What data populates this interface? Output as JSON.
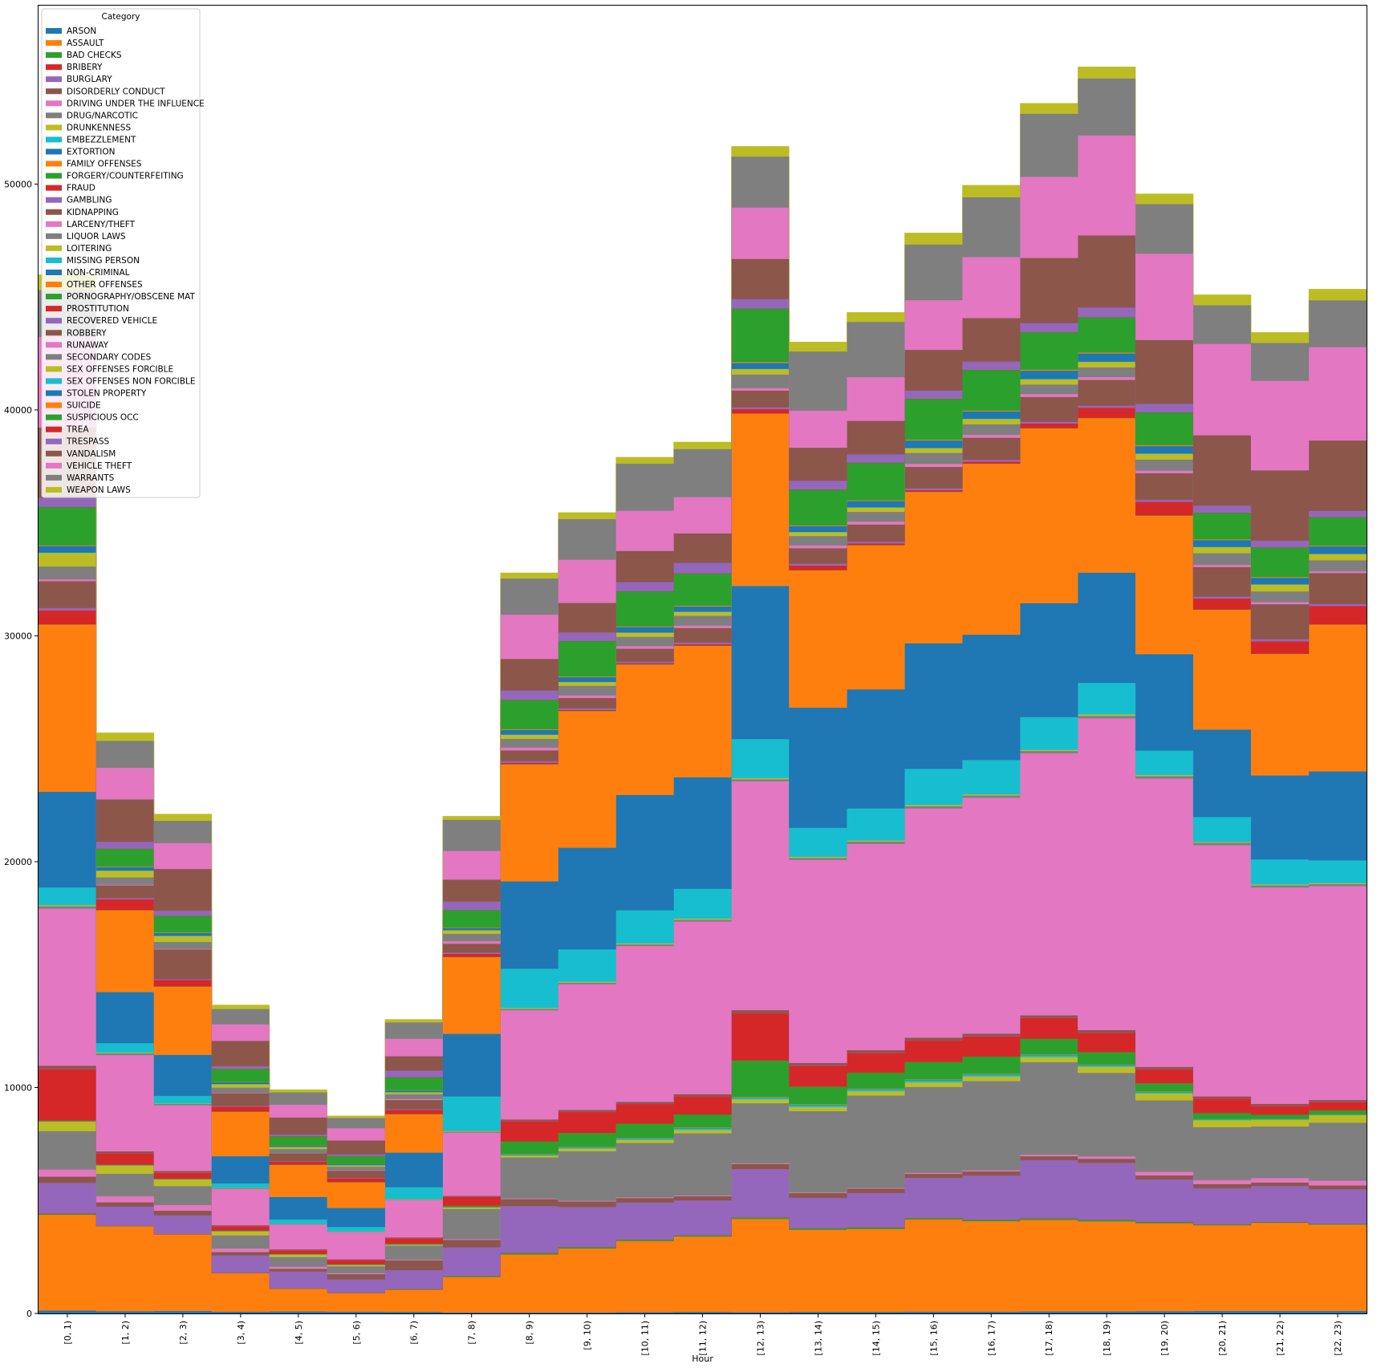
{
  "chart_data": {
    "type": "area",
    "stacked": true,
    "step": true,
    "xlabel": "Hour",
    "ylabel": "",
    "ylim": [
      0,
      57900
    ],
    "yticks": [
      0,
      10000,
      20000,
      30000,
      40000,
      50000
    ],
    "grid": false,
    "legend": {
      "title": "Category",
      "position": "top-left"
    },
    "categories": [
      "[0, 1)",
      "[1, 2)",
      "[2, 3)",
      "[3, 4)",
      "[4, 5)",
      "[5, 6)",
      "[6, 7)",
      "[7, 8)",
      "[8, 9)",
      "[9, 10)",
      "[10, 11)",
      "[11, 12)",
      "[12, 13)",
      "[13, 14)",
      "[14, 15)",
      "[15, 16)",
      "[16, 17)",
      "[17, 18)",
      "[18, 19)",
      "[19, 20)",
      "[20, 21)",
      "[21, 22)",
      "[22, 23)"
    ],
    "series": [
      {
        "name": "ARSON",
        "color": "#1f77b4",
        "values": [
          130,
          100,
          110,
          80,
          90,
          80,
          70,
          50,
          50,
          50,
          60,
          70,
          60,
          70,
          70,
          80,
          80,
          90,
          90,
          100,
          110,
          110,
          110
        ]
      },
      {
        "name": "ASSAULT",
        "color": "#ff7f0e",
        "values": [
          4240,
          3760,
          3390,
          1700,
          1000,
          820,
          980,
          1560,
          2560,
          2820,
          3140,
          3330,
          4120,
          3630,
          3670,
          4080,
          4000,
          4050,
          3980,
          3890,
          3790,
          3900,
          3820
        ]
      },
      {
        "name": "BAD CHECKS",
        "color": "#2ca02c",
        "values": [
          40,
          10,
          10,
          10,
          10,
          10,
          20,
          40,
          60,
          60,
          60,
          50,
          60,
          60,
          60,
          60,
          60,
          60,
          60,
          50,
          40,
          30,
          30
        ]
      },
      {
        "name": "BRIBERY",
        "color": "#d62728",
        "values": [
          20,
          10,
          10,
          10,
          10,
          10,
          10,
          10,
          10,
          10,
          10,
          10,
          10,
          10,
          10,
          10,
          10,
          10,
          10,
          10,
          10,
          10,
          10
        ]
      },
      {
        "name": "BURGLARY",
        "color": "#9467bd",
        "values": [
          1350,
          850,
          830,
          770,
          750,
          590,
          840,
          1270,
          2080,
          1770,
          1640,
          1550,
          2140,
          1350,
          1520,
          1770,
          1960,
          2580,
          2530,
          1880,
          1600,
          1590,
          1530
        ]
      },
      {
        "name": "DISORDERLY CONDUCT",
        "color": "#8c564b",
        "values": [
          280,
          190,
          200,
          150,
          120,
          230,
          430,
          330,
          300,
          250,
          200,
          180,
          230,
          210,
          200,
          180,
          180,
          170,
          180,
          180,
          180,
          160,
          170
        ]
      },
      {
        "name": "DRIVING UNDER THE INFLUENCE",
        "color": "#e377c2",
        "values": [
          310,
          270,
          250,
          150,
          90,
          40,
          30,
          30,
          30,
          30,
          30,
          30,
          30,
          30,
          30,
          40,
          50,
          70,
          100,
          160,
          170,
          190,
          210
        ]
      },
      {
        "name": "DRUG/NARCOTIC",
        "color": "#7f7f7f",
        "values": [
          1700,
          1000,
          840,
          590,
          430,
          310,
          620,
          1340,
          1820,
          2200,
          2410,
          2760,
          2660,
          3600,
          4090,
          3810,
          3950,
          4100,
          3700,
          3170,
          2350,
          2290,
          2570
        ]
      },
      {
        "name": "DRUNKENNESS",
        "color": "#bcbd22",
        "values": [
          420,
          360,
          290,
          170,
          100,
          50,
          40,
          60,
          80,
          110,
          130,
          140,
          170,
          180,
          190,
          200,
          200,
          220,
          270,
          300,
          300,
          290,
          330
        ]
      },
      {
        "name": "EMBEZZLEMENT",
        "color": "#17becf",
        "values": [
          10,
          10,
          10,
          10,
          10,
          10,
          10,
          10,
          30,
          50,
          60,
          70,
          70,
          80,
          80,
          90,
          80,
          80,
          70,
          50,
          40,
          30,
          20
        ]
      },
      {
        "name": "EXTORTION",
        "color": "#1f77b4",
        "values": [
          10,
          10,
          10,
          10,
          10,
          10,
          10,
          10,
          20,
          20,
          20,
          20,
          20,
          20,
          20,
          20,
          20,
          20,
          20,
          20,
          10,
          10,
          10
        ]
      },
      {
        "name": "FAMILY OFFENSES",
        "color": "#ff7f0e",
        "values": [
          10,
          10,
          10,
          10,
          10,
          10,
          10,
          10,
          20,
          20,
          20,
          20,
          20,
          20,
          20,
          20,
          20,
          20,
          20,
          20,
          10,
          10,
          10
        ]
      },
      {
        "name": "FORGERY/COUNTERFEITING",
        "color": "#2ca02c",
        "values": [
          20,
          10,
          10,
          10,
          10,
          10,
          20,
          50,
          560,
          600,
          620,
          580,
          1610,
          780,
          700,
          770,
          760,
          690,
          540,
          360,
          260,
          180,
          170
        ]
      },
      {
        "name": "FRAUD",
        "color": "#d62728",
        "values": [
          2280,
          500,
          260,
          190,
          160,
          180,
          240,
          390,
          890,
          930,
          870,
          800,
          2090,
          930,
          880,
          950,
          900,
          920,
          850,
          620,
          640,
          380,
          360
        ]
      },
      {
        "name": "GAMBLING",
        "color": "#9467bd",
        "values": [
          20,
          10,
          10,
          10,
          10,
          10,
          10,
          10,
          10,
          10,
          10,
          10,
          10,
          10,
          10,
          10,
          10,
          10,
          10,
          10,
          10,
          10,
          10
        ]
      },
      {
        "name": "KIDNAPPING",
        "color": "#8c564b",
        "values": [
          130,
          80,
          70,
          40,
          30,
          30,
          30,
          40,
          70,
          80,
          90,
          90,
          130,
          110,
          110,
          120,
          110,
          110,
          120,
          100,
          90,
          90,
          90
        ]
      },
      {
        "name": "LARCENY/THEFT",
        "color": "#e377c2",
        "values": [
          6950,
          4260,
          2910,
          1600,
          1100,
          1200,
          1650,
          2800,
          4830,
          5570,
          6900,
          7640,
          10130,
          8990,
          9130,
          10150,
          10440,
          11600,
          13800,
          12760,
          11120,
          9580,
          9470
        ]
      },
      {
        "name": "LIQUOR LAWS",
        "color": "#7f7f7f",
        "values": [
          110,
          80,
          60,
          30,
          20,
          20,
          20,
          40,
          70,
          70,
          70,
          80,
          90,
          90,
          100,
          100,
          100,
          100,
          110,
          110,
          110,
          90,
          90
        ]
      },
      {
        "name": "LOITERING",
        "color": "#bcbd22",
        "values": [
          50,
          30,
          20,
          20,
          10,
          10,
          20,
          30,
          40,
          40,
          40,
          50,
          50,
          50,
          50,
          50,
          50,
          50,
          60,
          50,
          40,
          40,
          40
        ]
      },
      {
        "name": "MISSING PERSON",
        "color": "#17becf",
        "values": [
          780,
          420,
          330,
          200,
          190,
          200,
          530,
          1530,
          1730,
          1430,
          1470,
          1320,
          1730,
          1280,
          1420,
          1600,
          1520,
          1450,
          1400,
          1080,
          1100,
          1110,
          1010
        ]
      },
      {
        "name": "NON-CRIMINAL",
        "color": "#1f77b4",
        "values": [
          4240,
          2260,
          1820,
          1200,
          1000,
          840,
          1530,
          2770,
          3870,
          4500,
          5110,
          4940,
          6780,
          5320,
          5270,
          5560,
          5550,
          5050,
          4880,
          4270,
          3870,
          3720,
          3940
        ]
      },
      {
        "name": "OTHER OFFENSES",
        "color": "#ff7f0e",
        "values": [
          7400,
          3620,
          3020,
          1970,
          1420,
          1140,
          1700,
          3400,
          5180,
          6050,
          5770,
          5820,
          7630,
          6080,
          6380,
          6700,
          7570,
          7740,
          6840,
          6130,
          5310,
          5380,
          6500
        ]
      },
      {
        "name": "PORNOGRAPHY/OBSCENE MAT",
        "color": "#2ca02c",
        "values": [
          10,
          10,
          10,
          10,
          10,
          10,
          10,
          10,
          10,
          10,
          10,
          10,
          10,
          10,
          10,
          10,
          10,
          10,
          10,
          10,
          10,
          10,
          10
        ]
      },
      {
        "name": "PROSTITUTION",
        "color": "#d62728",
        "values": [
          620,
          480,
          280,
          220,
          130,
          160,
          180,
          130,
          60,
          40,
          50,
          60,
          190,
          200,
          70,
          70,
          80,
          200,
          450,
          600,
          480,
          550,
          810
        ]
      },
      {
        "name": "RECOVERED VEHICLE",
        "color": "#9467bd",
        "values": [
          100,
          50,
          40,
          30,
          20,
          20,
          30,
          50,
          70,
          70,
          70,
          70,
          80,
          80,
          80,
          80,
          80,
          80,
          90,
          90,
          90,
          90,
          90
        ]
      },
      {
        "name": "ROBBERY",
        "color": "#8c564b",
        "values": [
          1190,
          560,
          1320,
          560,
          350,
          320,
          410,
          400,
          480,
          460,
          570,
          650,
          740,
          690,
          760,
          950,
          980,
          1100,
          1140,
          1180,
          1310,
          1550,
          1370
        ]
      },
      {
        "name": "RUNAWAY",
        "color": "#e377c2",
        "values": [
          80,
          30,
          20,
          20,
          10,
          20,
          50,
          110,
          120,
          110,
          110,
          100,
          100,
          120,
          130,
          130,
          130,
          120,
          120,
          110,
          90,
          90,
          80
        ]
      },
      {
        "name": "SECONDARY CODES",
        "color": "#7f7f7f",
        "values": [
          570,
          330,
          310,
          230,
          180,
          160,
          210,
          330,
          390,
          430,
          420,
          440,
          610,
          420,
          430,
          490,
          470,
          430,
          440,
          500,
          520,
          480,
          490
        ]
      },
      {
        "name": "SEX OFFENSES FORCIBLE",
        "color": "#bcbd22",
        "values": [
          600,
          290,
          260,
          150,
          90,
          60,
          80,
          150,
          180,
          160,
          180,
          170,
          240,
          170,
          190,
          210,
          230,
          230,
          240,
          250,
          270,
          300,
          270
        ]
      },
      {
        "name": "SEX OFFENSES NON FORCIBLE",
        "color": "#17becf",
        "values": [
          20,
          10,
          10,
          10,
          10,
          10,
          10,
          10,
          10,
          10,
          10,
          10,
          10,
          10,
          10,
          10,
          10,
          10,
          10,
          10,
          10,
          10,
          10
        ]
      },
      {
        "name": "STOLEN PROPERTY",
        "color": "#1f77b4",
        "values": [
          290,
          150,
          120,
          80,
          50,
          40,
          70,
          100,
          200,
          210,
          240,
          230,
          260,
          260,
          280,
          330,
          330,
          370,
          360,
          330,
          300,
          290,
          330
        ]
      },
      {
        "name": "SUICIDE",
        "color": "#ff7f0e",
        "values": [
          30,
          20,
          20,
          10,
          10,
          10,
          10,
          20,
          30,
          30,
          30,
          30,
          40,
          30,
          30,
          30,
          30,
          40,
          40,
          40,
          30,
          30,
          30
        ]
      },
      {
        "name": "SUSPICIOUS OCC",
        "color": "#2ca02c",
        "values": [
          1690,
          790,
          740,
          580,
          400,
          340,
          570,
          760,
          1300,
          1570,
          1550,
          1430,
          2360,
          1580,
          1660,
          1810,
          1800,
          1660,
          1560,
          1450,
          1170,
          1310,
          1260
        ]
      },
      {
        "name": "TREA",
        "color": "#d62728",
        "values": [
          10,
          10,
          10,
          10,
          10,
          10,
          10,
          10,
          10,
          10,
          10,
          10,
          10,
          10,
          10,
          10,
          10,
          10,
          10,
          10,
          10,
          10,
          10
        ]
      },
      {
        "name": "TRESPASS",
        "color": "#9467bd",
        "values": [
          400,
          300,
          220,
          110,
          70,
          80,
          290,
          380,
          410,
          370,
          400,
          460,
          420,
          390,
          360,
          360,
          360,
          400,
          420,
          370,
          310,
          290,
          270
        ]
      },
      {
        "name": "VANDALISM",
        "color": "#8c564b",
        "values": [
          3120,
          1880,
          1850,
          1120,
          760,
          610,
          640,
          970,
          1400,
          1310,
          1380,
          1310,
          1780,
          1460,
          1490,
          1800,
          1930,
          2880,
          3200,
          2830,
          3120,
          3120,
          3120
        ]
      },
      {
        "name": "VEHICLE THEFT",
        "color": "#e377c2",
        "values": [
          4000,
          1400,
          1140,
          730,
          560,
          540,
          770,
          1270,
          1960,
          1910,
          1780,
          1600,
          2270,
          1640,
          1930,
          2200,
          2700,
          3590,
          4420,
          3820,
          4050,
          3960,
          4130
        ]
      },
      {
        "name": "WARRANTS",
        "color": "#7f7f7f",
        "values": [
          2080,
          1190,
          990,
          680,
          550,
          460,
          730,
          1380,
          1600,
          1800,
          2090,
          2130,
          2260,
          2620,
          2450,
          2470,
          2650,
          2800,
          2530,
          2200,
          1710,
          1680,
          2080
        ]
      },
      {
        "name": "WEAPON LAWS",
        "color": "#bcbd22",
        "values": [
          680,
          360,
          300,
          180,
          120,
          90,
          130,
          160,
          250,
          290,
          280,
          310,
          450,
          420,
          420,
          510,
          530,
          460,
          510,
          450,
          460,
          470,
          490
        ]
      }
    ]
  }
}
